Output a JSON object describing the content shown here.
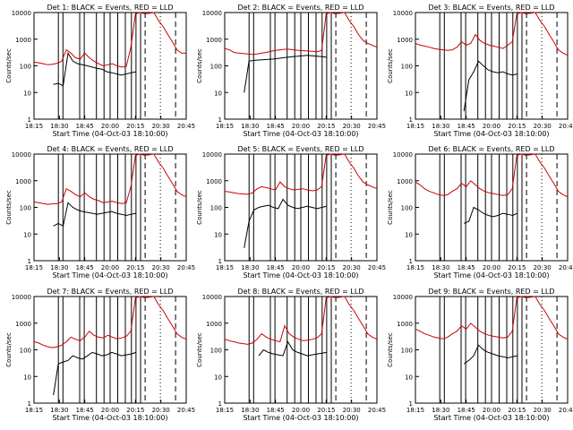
{
  "chart_data": [
    {
      "type": "line",
      "title": "Det 1: BLACK = Events, RED = LLD",
      "xlabel": "Start Time (04-Oct-03 18:10:00)",
      "ylabel": "Counts/sec",
      "yscale": "log",
      "ylim": [
        1,
        10000
      ],
      "xtick_labels": [
        "18:15",
        "18:30",
        "18:45",
        "20:00",
        "20:15",
        "20:30",
        "20:45"
      ],
      "ytick_labels": [
        "1",
        "10",
        "100",
        "1000",
        "10000"
      ],
      "series": [
        {
          "color": "#000000",
          "y": [
            null,
            null,
            null,
            null,
            20,
            22,
            18,
            300,
            150,
            120,
            110,
            100,
            90,
            80,
            75,
            60,
            55,
            50,
            45,
            50,
            55,
            60
          ]
        },
        {
          "color": "#cc0000",
          "y": [
            140,
            130,
            120,
            110,
            115,
            125,
            150,
            400,
            300,
            200,
            180,
            300,
            200,
            150,
            120,
            100,
            110,
            120,
            100,
            90,
            95,
            500,
            9000,
            10000,
            9000,
            9500,
            10000,
            5000,
            3000,
            1500,
            800,
            400,
            300,
            300
          ]
        }
      ]
    },
    {
      "type": "line",
      "title": "Det 2: BLACK = Events, RED = LLD",
      "xlabel": "Start Time (04-Oct-03 18:10:00)",
      "ylabel": "Counts/sec",
      "yscale": "log",
      "ylim": [
        1,
        10000
      ],
      "xtick_labels": [
        "18:15",
        "18:30",
        "18:45",
        "20:00",
        "20:15",
        "20:30",
        "20:45"
      ],
      "ytick_labels": [
        "1",
        "10",
        "100",
        "1000",
        "10000"
      ],
      "series": [
        {
          "color": "#000000",
          "y": [
            null,
            null,
            null,
            null,
            10,
            150,
            160,
            165,
            170,
            175,
            180,
            190,
            200,
            210,
            220,
            230,
            240,
            250,
            240,
            230,
            220,
            210
          ]
        },
        {
          "color": "#cc0000",
          "y": [
            450,
            400,
            320,
            300,
            290,
            280,
            270,
            280,
            300,
            320,
            350,
            380,
            400,
            420,
            420,
            400,
            380,
            370,
            360,
            350,
            340,
            380,
            9000,
            10000,
            9000,
            9500,
            10000,
            5000,
            3000,
            1500,
            900,
            700,
            600,
            500
          ]
        }
      ]
    },
    {
      "type": "line",
      "title": "Det 3: BLACK = Events, RED = LLD",
      "xlabel": "Start Time (04-Oct-03 18:10:00)",
      "ylabel": "Counts/sec",
      "yscale": "log",
      "ylim": [
        1,
        10000
      ],
      "xtick_labels": [
        "18:15",
        "18:30",
        "18:45",
        "20:00",
        "20:15",
        "20:30",
        "20:45"
      ],
      "ytick_labels": [
        "1",
        "10",
        "100",
        "1000",
        "10000"
      ],
      "series": [
        {
          "color": "#000000",
          "y": [
            null,
            null,
            null,
            null,
            null,
            null,
            null,
            null,
            null,
            null,
            2,
            30,
            60,
            150,
            100,
            70,
            60,
            55,
            60,
            50,
            45,
            50
          ]
        },
        {
          "color": "#cc0000",
          "y": [
            700,
            600,
            550,
            500,
            450,
            420,
            400,
            380,
            400,
            500,
            800,
            600,
            700,
            1500,
            900,
            700,
            600,
            550,
            500,
            450,
            600,
            800,
            9000,
            10000,
            9000,
            9500,
            10000,
            5000,
            3000,
            1500,
            800,
            400,
            300,
            250
          ]
        }
      ]
    },
    {
      "type": "line",
      "title": "Det 4: BLACK = Events, RED = LLD",
      "xlabel": "Start Time (04-Oct-03 18:10:00)",
      "ylabel": "Counts/sec",
      "yscale": "log",
      "ylim": [
        1,
        10000
      ],
      "xtick_labels": [
        "18:15",
        "18:30",
        "18:45",
        "20:00",
        "20:15",
        "20:30",
        "20:45"
      ],
      "ytick_labels": [
        "1",
        "10",
        "100",
        "1000",
        "10000"
      ],
      "series": [
        {
          "color": "#000000",
          "y": [
            null,
            null,
            null,
            null,
            20,
            25,
            20,
            150,
            100,
            80,
            70,
            65,
            60,
            55,
            60,
            65,
            70,
            60,
            55,
            50,
            55,
            60
          ]
        },
        {
          "color": "#cc0000",
          "y": [
            160,
            150,
            140,
            130,
            135,
            140,
            160,
            500,
            400,
            300,
            250,
            350,
            250,
            200,
            180,
            150,
            160,
            170,
            150,
            140,
            150,
            600,
            9000,
            10000,
            9000,
            9500,
            10000,
            5000,
            3000,
            1500,
            800,
            400,
            300,
            250
          ]
        }
      ]
    },
    {
      "type": "line",
      "title": "Det 5: BLACK = Events, RED = LLD",
      "xlabel": "Start Time (04-Oct-03 18:10:00)",
      "ylabel": "Counts/sec",
      "yscale": "log",
      "ylim": [
        1,
        10000
      ],
      "xtick_labels": [
        "18:15",
        "18:30",
        "18:45",
        "20:00",
        "20:15",
        "20:30",
        "20:45"
      ],
      "ytick_labels": [
        "1",
        "10",
        "100",
        "1000",
        "10000"
      ],
      "series": [
        {
          "color": "#000000",
          "y": [
            null,
            null,
            null,
            null,
            3,
            30,
            80,
            100,
            110,
            120,
            100,
            90,
            200,
            120,
            100,
            90,
            100,
            110,
            100,
            90,
            100,
            110
          ]
        },
        {
          "color": "#cc0000",
          "y": [
            400,
            380,
            350,
            330,
            320,
            310,
            350,
            500,
            600,
            550,
            500,
            450,
            900,
            600,
            500,
            450,
            480,
            500,
            450,
            420,
            450,
            600,
            9000,
            10000,
            9000,
            9500,
            10000,
            5000,
            3000,
            1500,
            900,
            700,
            600,
            500
          ]
        }
      ]
    },
    {
      "type": "line",
      "title": "Det 6: BLACK = Events, RED = LLD",
      "xlabel": "Start Time (04-Oct-03 18:10:00)",
      "ylabel": "Counts/sec",
      "yscale": "log",
      "ylim": [
        1,
        10000
      ],
      "xtick_labels": [
        "18:15",
        "18:30",
        "18:45",
        "20:00",
        "20:15",
        "20:30",
        "20:45"
      ],
      "ytick_labels": [
        "1",
        "10",
        "100",
        "1000",
        "10000"
      ],
      "series": [
        {
          "color": "#000000",
          "y": [
            null,
            null,
            null,
            null,
            null,
            null,
            null,
            null,
            null,
            null,
            25,
            30,
            100,
            80,
            60,
            50,
            45,
            50,
            60,
            55,
            50,
            60
          ]
        },
        {
          "color": "#cc0000",
          "y": [
            900,
            700,
            500,
            400,
            350,
            300,
            280,
            300,
            400,
            500,
            800,
            600,
            1000,
            700,
            500,
            400,
            350,
            330,
            300,
            280,
            300,
            500,
            9000,
            10000,
            9000,
            9500,
            10000,
            5000,
            3000,
            1500,
            800,
            400,
            300,
            250
          ]
        }
      ]
    },
    {
      "type": "line",
      "title": "Det 7: BLACK = Events, RED = LLD",
      "xlabel": "Start Time (04-Oct-03 18:10:00)",
      "ylabel": "Counts/sec",
      "yscale": "log",
      "ylim": [
        1,
        10000
      ],
      "xtick_labels": [
        "18:15",
        "18:30",
        "18:45",
        "20:00",
        "20:15",
        "20:30",
        "20:45"
      ],
      "ytick_labels": [
        "1",
        "10",
        "100",
        "1000",
        "10000"
      ],
      "series": [
        {
          "color": "#000000",
          "y": [
            null,
            null,
            null,
            null,
            2,
            30,
            35,
            40,
            60,
            50,
            45,
            60,
            80,
            70,
            60,
            65,
            80,
            70,
            60,
            65,
            70,
            80
          ]
        },
        {
          "color": "#cc0000",
          "y": [
            200,
            180,
            150,
            130,
            120,
            130,
            150,
            200,
            300,
            250,
            220,
            300,
            500,
            350,
            300,
            280,
            350,
            300,
            260,
            280,
            320,
            500,
            9000,
            10000,
            9000,
            9500,
            10000,
            5000,
            3000,
            1500,
            800,
            400,
            300,
            250
          ]
        }
      ]
    },
    {
      "type": "line",
      "title": "Det 8: BLACK = Events, RED = LLD",
      "xlabel": "Start Time (04-Oct-03 18:10:00)",
      "ylabel": "Counts/sec",
      "yscale": "log",
      "ylim": [
        1,
        10000
      ],
      "xtick_labels": [
        "18:15",
        "18:30",
        "18:45",
        "20:00",
        "20:15",
        "20:30",
        "20:45"
      ],
      "ytick_labels": [
        "1",
        "10",
        "100",
        "1000",
        "10000"
      ],
      "series": [
        {
          "color": "#000000",
          "y": [
            null,
            null,
            null,
            null,
            null,
            null,
            null,
            60,
            100,
            80,
            70,
            65,
            60,
            200,
            100,
            80,
            70,
            60,
            65,
            70,
            75,
            80
          ]
        },
        {
          "color": "#cc0000",
          "y": [
            250,
            220,
            200,
            180,
            170,
            160,
            180,
            250,
            400,
            300,
            250,
            220,
            200,
            800,
            400,
            300,
            250,
            220,
            230,
            250,
            280,
            400,
            9000,
            10000,
            9000,
            9500,
            10000,
            5000,
            3000,
            1500,
            800,
            400,
            300,
            250
          ]
        }
      ]
    },
    {
      "type": "line",
      "title": "Det 9: BLACK = Events, RED = LLD",
      "xlabel": "Start Time (04-Oct-03 18:10:00)",
      "ylabel": "Counts/sec",
      "yscale": "log",
      "ylim": [
        1,
        10000
      ],
      "xtick_labels": [
        "18:15",
        "18:30",
        "18:45",
        "20:00",
        "20:15",
        "20:30",
        "20:45"
      ],
      "ytick_labels": [
        "1",
        "10",
        "100",
        "1000",
        "10000"
      ],
      "series": [
        {
          "color": "#000000",
          "y": [
            null,
            null,
            null,
            null,
            null,
            null,
            null,
            null,
            null,
            null,
            30,
            40,
            60,
            150,
            100,
            80,
            70,
            60,
            55,
            50,
            55,
            60
          ]
        },
        {
          "color": "#cc0000",
          "y": [
            600,
            500,
            400,
            350,
            300,
            280,
            260,
            300,
            400,
            500,
            800,
            600,
            1000,
            700,
            500,
            400,
            350,
            320,
            300,
            280,
            300,
            500,
            9000,
            10000,
            9000,
            9500,
            10000,
            5000,
            3000,
            1500,
            800,
            400,
            300,
            250
          ]
        }
      ]
    }
  ]
}
